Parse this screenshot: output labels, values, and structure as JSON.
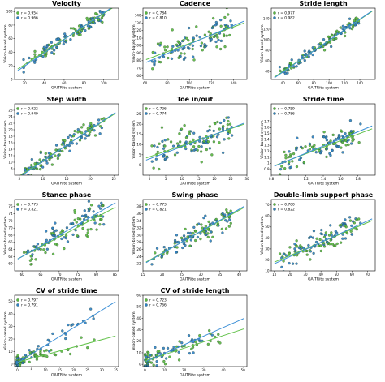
{
  "figure": {
    "xlabel": "GAITRite system",
    "ylabel": "Vision-based system",
    "r_prefix": "r = ",
    "colors": {
      "green": "#58b83f",
      "blue": "#2f7fc4",
      "green_line": "#62c24a",
      "blue_line": "#3b8fd6"
    }
  },
  "chart_data": [
    {
      "type": "scatter",
      "title": "Velocity",
      "xlim": [
        10,
        115
      ],
      "ylim": [
        0,
        105
      ],
      "xticks": [
        20,
        40,
        60,
        80,
        100
      ],
      "yticks": [
        0,
        20,
        40,
        60,
        80,
        100
      ],
      "r_green": "0.954",
      "r_blue": "0.966",
      "line_green": [
        0.94,
        3
      ],
      "line_blue": [
        0.98,
        0
      ],
      "n": 120,
      "noise": 5,
      "legend": "top-left"
    },
    {
      "type": "scatter",
      "title": "Cadence",
      "xlim": [
        58,
        152
      ],
      "ylim": [
        55,
        150
      ],
      "xticks": [
        60,
        80,
        100,
        120,
        140
      ],
      "yticks": [
        60,
        70,
        80,
        90,
        100,
        110,
        120,
        130,
        140
      ],
      "r_green": "0.784",
      "r_blue": "0.810",
      "line_green": [
        0.55,
        48
      ],
      "line_blue": [
        0.62,
        40
      ],
      "n": 120,
      "noise": 10,
      "legend": "top-left"
    },
    {
      "type": "scatter",
      "title": "Stride length",
      "xlim": [
        25,
        160
      ],
      "ylim": [
        25,
        160
      ],
      "xticks": [
        40,
        60,
        80,
        100,
        120,
        140
      ],
      "yticks": [
        40,
        60,
        80,
        100,
        120,
        140
      ],
      "r_green": "0.977",
      "r_blue": "0.982",
      "line_green": [
        0.98,
        1
      ],
      "line_blue": [
        1.0,
        -1
      ],
      "n": 120,
      "noise": 5,
      "legend": "top-left"
    },
    {
      "type": "scatter",
      "title": "Step width",
      "xlim": [
        4,
        26
      ],
      "ylim": [
        6,
        28
      ],
      "xticks": [
        5,
        10,
        15,
        20,
        25
      ],
      "yticks": [
        8,
        10,
        12,
        14,
        16,
        18,
        20,
        22,
        24,
        26
      ],
      "r_green": "0.922",
      "r_blue": "0.949",
      "line_green": [
        0.95,
        1
      ],
      "line_blue": [
        0.98,
        0.5
      ],
      "n": 120,
      "noise": 1.3,
      "legend": "top-left"
    },
    {
      "type": "scatter",
      "title": "Toe in/out",
      "xlim": [
        -2,
        30
      ],
      "ylim": [
        -5,
        30
      ],
      "xticks": [
        0,
        5,
        10,
        15,
        20,
        25,
        30
      ],
      "yticks": [
        0,
        5,
        10,
        15,
        20,
        25
      ],
      "r_green": "0.726",
      "r_blue": "0.774",
      "line_green": [
        0.55,
        4
      ],
      "line_blue": [
        0.6,
        3
      ],
      "n": 120,
      "noise": 4,
      "legend": "top-left"
    },
    {
      "type": "scatter",
      "title": "Stride time",
      "xlim": [
        0.8,
        2.0
      ],
      "ylim": [
        0.8,
        2.0
      ],
      "xticks": [
        0.8,
        1.0,
        1.2,
        1.4,
        1.6,
        1.8
      ],
      "yticks": [
        0.9,
        1.0,
        1.1,
        1.2,
        1.3,
        1.4,
        1.5,
        1.6,
        1.7
      ],
      "r_green": "0.759",
      "r_blue": "0.786",
      "line_green": [
        0.55,
        0.5
      ],
      "line_blue": [
        0.6,
        0.45
      ],
      "n": 120,
      "noise": 0.1,
      "legend": "top-left"
    },
    {
      "type": "scatter",
      "title": "Stance phase",
      "xlim": [
        58,
        86
      ],
      "ylim": [
        58,
        78
      ],
      "xticks": [
        60,
        65,
        70,
        75,
        80,
        85
      ],
      "yticks": [
        60,
        62,
        64,
        66,
        68,
        70,
        72,
        74,
        76
      ],
      "r_green": "0.773",
      "r_blue": "0.821",
      "line_green": [
        0.55,
        29
      ],
      "line_blue": [
        0.6,
        26
      ],
      "n": 120,
      "noise": 2,
      "legend": "top-left"
    },
    {
      "type": "scatter",
      "title": "Swing phase",
      "xlim": [
        15,
        42
      ],
      "ylim": [
        20,
        40
      ],
      "xticks": [
        15,
        20,
        25,
        30,
        35,
        40
      ],
      "yticks": [
        22,
        24,
        26,
        28,
        30,
        32,
        34,
        36,
        38
      ],
      "r_green": "0.773",
      "r_blue": "0.821",
      "line_green": [
        0.6,
        13
      ],
      "line_blue": [
        0.62,
        12.5
      ],
      "n": 120,
      "noise": 1.5,
      "legend": "top-left"
    },
    {
      "type": "scatter",
      "title": "Double-limb support phase",
      "xlim": [
        8,
        75
      ],
      "ylim": [
        10,
        75
      ],
      "xticks": [
        10,
        20,
        30,
        40,
        50,
        60,
        70
      ],
      "yticks": [
        10,
        20,
        30,
        40,
        50,
        60,
        70
      ],
      "r_green": "0.780",
      "r_blue": "0.822",
      "line_green": [
        0.6,
        12
      ],
      "line_blue": [
        0.65,
        10
      ],
      "n": 120,
      "noise": 6,
      "legend": "top-left"
    },
    {
      "type": "scatter",
      "title": "CV of stride time",
      "xlim": [
        -1,
        36
      ],
      "ylim": [
        -2,
        55
      ],
      "xticks": [
        0,
        5,
        10,
        15,
        20,
        25,
        30,
        35
      ],
      "yticks": [
        0,
        10,
        20,
        30,
        40,
        50
      ],
      "r_green": "0.797",
      "r_blue": "0.791",
      "line_green": [
        0.6,
        1.5
      ],
      "line_blue": [
        1.4,
        1
      ],
      "n": 100,
      "noise": 3,
      "legend": "top-left"
    },
    {
      "type": "scatter",
      "title": "CV of stride length",
      "xlim": [
        -1,
        52
      ],
      "ylim": [
        -2,
        60
      ],
      "xticks": [
        0,
        10,
        20,
        30,
        40,
        50
      ],
      "yticks": [
        0,
        10,
        20,
        30,
        40,
        50,
        60
      ],
      "r_green": "0.723",
      "r_blue": "0.766",
      "line_green": [
        0.55,
        3
      ],
      "line_blue": [
        0.75,
        2
      ],
      "n": 100,
      "noise": 4,
      "legend": "top-left"
    }
  ]
}
